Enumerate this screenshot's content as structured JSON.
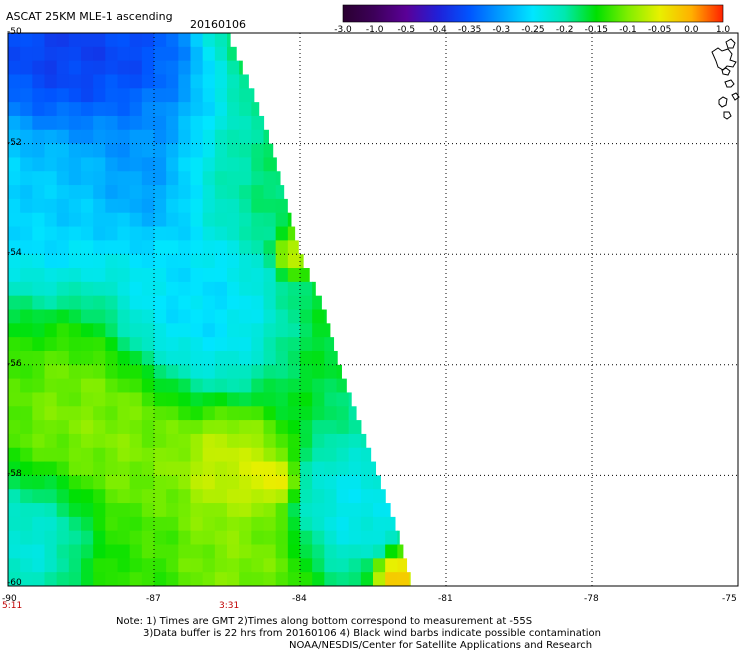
{
  "header": {
    "title": "ASCAT 25KM MLE-1 ascending",
    "date": "20160106"
  },
  "colorbar": {
    "labels": [
      "-3.0",
      "-1.0",
      "-0.5",
      "-0.4",
      "-0.35",
      "-0.3",
      "-0.25",
      "-0.2",
      "-0.15",
      "-0.1",
      "-0.05",
      "0.0",
      "1.0"
    ],
    "colors": [
      "#2a0030",
      "#3d005a",
      "#5a0097",
      "#2020d8",
      "#0055ff",
      "#00a0ff",
      "#00e6ff",
      "#00e8b0",
      "#00e000",
      "#80ee00",
      "#e8f000",
      "#ffb000",
      "#ff2000"
    ]
  },
  "footnotes": {
    "line1": "Note: 1) Times are GMT 2)Times along bottom correspond to measurement at -55S",
    "line2": "3)Data buffer is 22 hrs from 20160106 4) Black wind barbs indicate possible contamination",
    "line3": "NOAA/NESDIS/Center for Satellite Applications and Research"
  },
  "times": [
    {
      "label": "5:11",
      "lon": -90
    },
    {
      "label": "3:31",
      "lon": -85.5
    }
  ],
  "chart_data": {
    "type": "heatmap",
    "title": "ASCAT 25KM MLE-1 ascending",
    "subtitle": "20160106",
    "xlabel": "",
    "ylabel": "",
    "xlim": [
      -90,
      -75
    ],
    "ylim": [
      -60,
      -50
    ],
    "x_ticks": [
      "-90",
      "-87",
      "-84",
      "-81",
      "-78",
      "-75"
    ],
    "y_ticks": [
      "-50",
      "-52",
      "-54",
      "-56",
      "-58",
      "-60"
    ],
    "grid": true,
    "swath_edge": [
      {
        "lat": -50.0,
        "lon": -85.5
      },
      {
        "lat": -51.0,
        "lon": -85.0
      },
      {
        "lat": -52.0,
        "lon": -84.6
      },
      {
        "lat": -53.0,
        "lon": -84.3
      },
      {
        "lat": -54.0,
        "lon": -84.0
      },
      {
        "lat": -55.0,
        "lon": -83.5
      },
      {
        "lat": -56.0,
        "lon": -83.2
      },
      {
        "lat": -57.0,
        "lon": -82.8
      },
      {
        "lat": -58.0,
        "lon": -82.4
      },
      {
        "lat": -59.0,
        "lon": -82.0
      },
      {
        "lat": -60.0,
        "lon": -81.7
      }
    ],
    "features": [
      {
        "lon": -89.0,
        "lat": -50.4,
        "value": -0.4,
        "radius": 1.4
      },
      {
        "lon": -87.5,
        "lat": -50.4,
        "value": -0.38,
        "radius": 1.0
      },
      {
        "lon": -87.0,
        "lat": -52.3,
        "value": -0.33,
        "radius": 1.3
      },
      {
        "lon": -89.2,
        "lat": -53.0,
        "value": -0.28,
        "radius": 1.3
      },
      {
        "lon": -86.2,
        "lat": -55.0,
        "value": -0.27,
        "radius": 1.2
      },
      {
        "lon": -85.5,
        "lat": -52.5,
        "value": -0.18,
        "radius": 0.9
      },
      {
        "lon": -88.2,
        "lat": -57.5,
        "value": -0.09,
        "radius": 1.6
      },
      {
        "lon": -85.5,
        "lat": -57.9,
        "value": -0.05,
        "radius": 0.8
      },
      {
        "lon": -84.6,
        "lat": -58.1,
        "value": -0.02,
        "radius": 0.35
      },
      {
        "lon": -85.5,
        "lat": -59.5,
        "value": -0.09,
        "radius": 1.0
      },
      {
        "lon": -89.3,
        "lat": -59.0,
        "value": -0.26,
        "radius": 1.0
      },
      {
        "lon": -87.5,
        "lat": -60.0,
        "value": -0.13,
        "radius": 1.2
      },
      {
        "lon": -82.8,
        "lat": -58.5,
        "value": -0.25,
        "radius": 0.9
      },
      {
        "lon": -84.1,
        "lat": -54.0,
        "value": -0.06,
        "radius": 0.3
      },
      {
        "lon": -82.0,
        "lat": -59.8,
        "value": 0.0,
        "radius": 0.35
      },
      {
        "lon": -82.5,
        "lat": -57.0,
        "value": -0.2,
        "radius": 0.6
      }
    ],
    "background_value": -0.16
  }
}
